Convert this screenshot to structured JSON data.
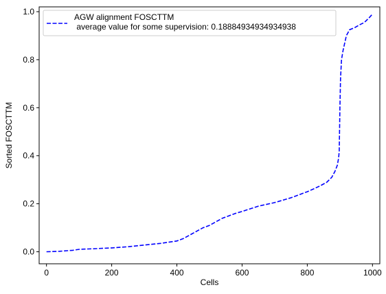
{
  "chart_data": {
    "type": "line",
    "title": "",
    "xlabel": "Cells",
    "ylabel": "Sorted FOSCTTM",
    "xlim": [
      -22.5,
      1022.5
    ],
    "ylim": [
      -0.05,
      1.02
    ],
    "xticks": [
      0,
      200,
      400,
      600,
      800,
      1000
    ],
    "xtick_labels": [
      "0",
      "200",
      "400",
      "600",
      "800",
      "1000"
    ],
    "yticks": [
      0.0,
      0.2,
      0.4,
      0.6,
      0.8,
      1.0
    ],
    "ytick_labels": [
      "0.0",
      "0.2",
      "0.4",
      "0.6",
      "0.8",
      "1.0"
    ],
    "grid": false,
    "legend": {
      "position": "top-left"
    },
    "series": [
      {
        "name": "AGW alignment FOSCTTM\n average value for some supervision: 0.18884934934934938",
        "color": "#0000ff",
        "style": "dashed",
        "x": [
          0,
          40,
          80,
          100,
          150,
          200,
          250,
          300,
          350,
          400,
          420,
          440,
          460,
          480,
          500,
          520,
          540,
          560,
          580,
          600,
          620,
          650,
          700,
          750,
          780,
          800,
          820,
          840,
          860,
          875,
          885,
          892,
          896,
          898,
          900,
          902,
          905,
          910,
          920,
          930,
          945,
          960,
          975,
          990,
          1000
        ],
        "y": [
          0.0,
          0.002,
          0.006,
          0.01,
          0.013,
          0.016,
          0.021,
          0.028,
          0.035,
          0.045,
          0.055,
          0.07,
          0.085,
          0.1,
          0.11,
          0.125,
          0.14,
          0.15,
          0.16,
          0.168,
          0.177,
          0.19,
          0.205,
          0.225,
          0.24,
          0.25,
          0.262,
          0.275,
          0.29,
          0.31,
          0.335,
          0.36,
          0.39,
          0.42,
          0.6,
          0.72,
          0.8,
          0.84,
          0.9,
          0.925,
          0.933,
          0.945,
          0.955,
          0.975,
          0.99
        ]
      }
    ]
  }
}
